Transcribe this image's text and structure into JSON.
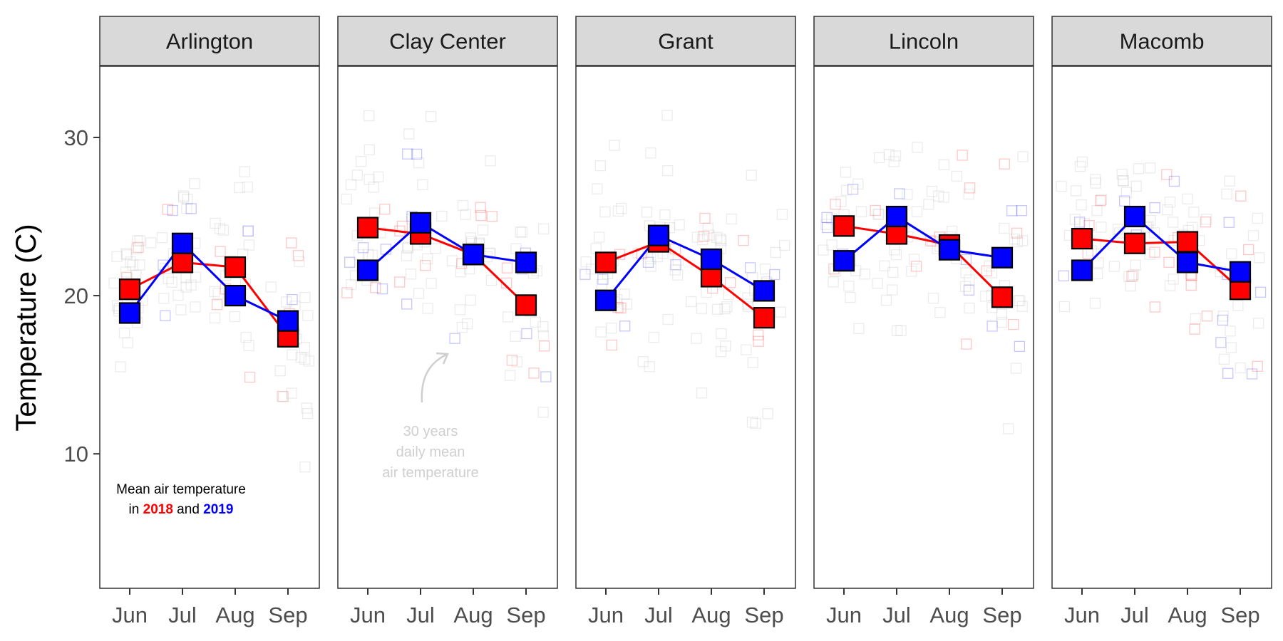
{
  "chart_data": {
    "type": "line",
    "ylabel": "Temperature (C)",
    "ylim": [
      1.5,
      34.5
    ],
    "yticks": [
      10,
      20,
      30
    ],
    "categories": [
      "Jun",
      "Jul",
      "Aug",
      "Sep"
    ],
    "grid": false,
    "colors": {
      "2018": "#ff0000",
      "2019": "#0000ff",
      "background_points": "#c8c8c8"
    },
    "legend_note": {
      "line1": "Mean air temperature",
      "in": "in",
      "year_a": "2018",
      "and": "and",
      "year_b": "2019"
    },
    "annotation": {
      "panel": "Clay Center",
      "lines": [
        "30 years",
        "daily mean",
        "air temperature"
      ]
    },
    "panels": [
      {
        "name": "Arlington",
        "series": [
          {
            "name": "2018",
            "values": [
              20.4,
              22.1,
              21.8,
              17.4
            ]
          },
          {
            "name": "2019",
            "values": [
              18.9,
              23.3,
              20.0,
              18.4
            ]
          }
        ]
      },
      {
        "name": "Clay Center",
        "series": [
          {
            "name": "2018",
            "values": [
              24.3,
              23.9,
              22.6,
              19.4
            ]
          },
          {
            "name": "2019",
            "values": [
              21.6,
              24.6,
              22.6,
              22.1
            ]
          }
        ]
      },
      {
        "name": "Grant",
        "series": [
          {
            "name": "2018",
            "values": [
              22.1,
              23.4,
              21.2,
              18.6
            ]
          },
          {
            "name": "2019",
            "values": [
              19.7,
              23.8,
              22.3,
              20.3
            ]
          }
        ]
      },
      {
        "name": "Lincoln",
        "series": [
          {
            "name": "2018",
            "values": [
              24.4,
              23.9,
              23.2,
              19.9
            ]
          },
          {
            "name": "2019",
            "values": [
              22.2,
              25.0,
              22.9,
              22.4
            ]
          }
        ]
      },
      {
        "name": "Macomb",
        "series": [
          {
            "name": "2018",
            "values": [
              23.6,
              23.3,
              23.4,
              20.4
            ]
          },
          {
            "name": "2019",
            "values": [
              21.6,
              25.0,
              22.1,
              21.5
            ]
          }
        ]
      }
    ]
  }
}
